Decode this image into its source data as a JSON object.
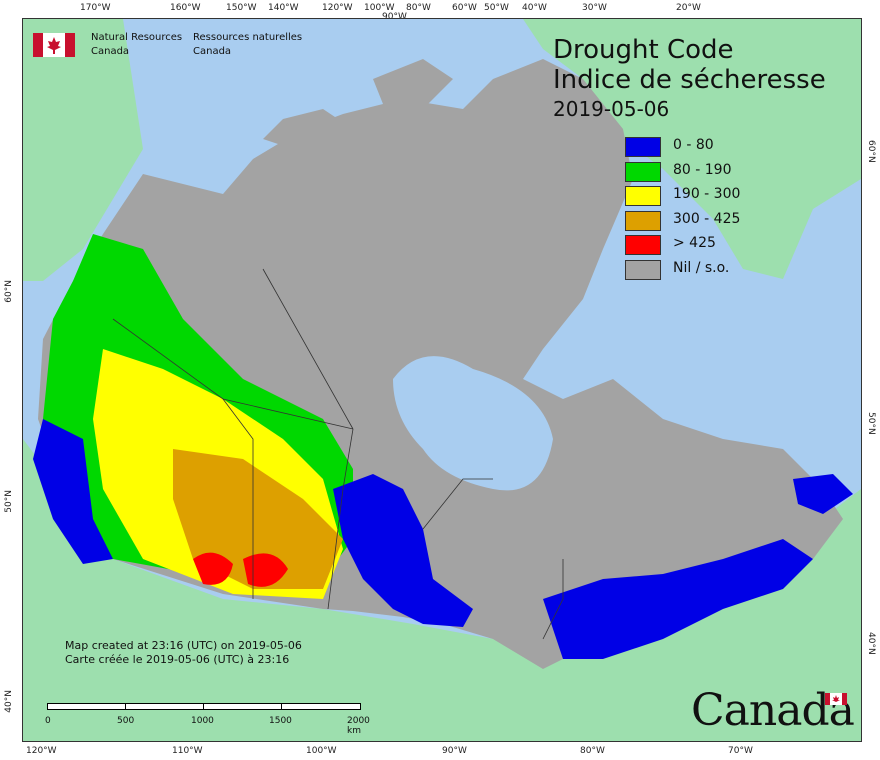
{
  "map": {
    "title_en": "Drought Code",
    "title_fr": "Indice de sécheresse",
    "date": "2019-05-06",
    "legend": [
      {
        "label": "0 - 80",
        "color": "#0000e6"
      },
      {
        "label": "80 - 190",
        "color": "#00d800"
      },
      {
        "label": "190 - 300",
        "color": "#ffff00"
      },
      {
        "label": "300 - 425",
        "color": "#dda000"
      },
      {
        "label": "> 425",
        "color": "#ff0000"
      },
      {
        "label": "Nil / s.o.",
        "color": "#a3a3a3"
      }
    ],
    "colors": {
      "ocean": "#a9cdf0",
      "land_outside": "#9ddfae",
      "no_data": "#a3a3a3"
    }
  },
  "agency": {
    "name_en_line1": "Natural Resources",
    "name_en_line2": "Canada",
    "name_fr_line1": "Ressources naturelles",
    "name_fr_line2": "Canada"
  },
  "credits": {
    "line_en": "Map created at 23:16 (UTC) on 2019-05-06",
    "line_fr": "Carte créée le 2019-05-06 (UTC) à 23:16"
  },
  "scalebar": {
    "labels": [
      "0",
      "500",
      "1000",
      "1500",
      "2000 km"
    ]
  },
  "top_ticks": [
    "170°W",
    "160°W",
    "150°W",
    "140°W",
    "120°W",
    "100°W",
    "90°W",
    "80°W",
    "60°W",
    "50°W",
    "40°W",
    "30°W",
    "20°W"
  ],
  "bottom_ticks": [
    "120°W",
    "110°W",
    "100°W",
    "90°W",
    "80°W",
    "70°W"
  ],
  "left_ticks": [
    "60°N",
    "50°N",
    "40°N"
  ],
  "right_ticks": [
    "60°N",
    "50°N",
    "40°N"
  ],
  "wordmark": "Canada"
}
